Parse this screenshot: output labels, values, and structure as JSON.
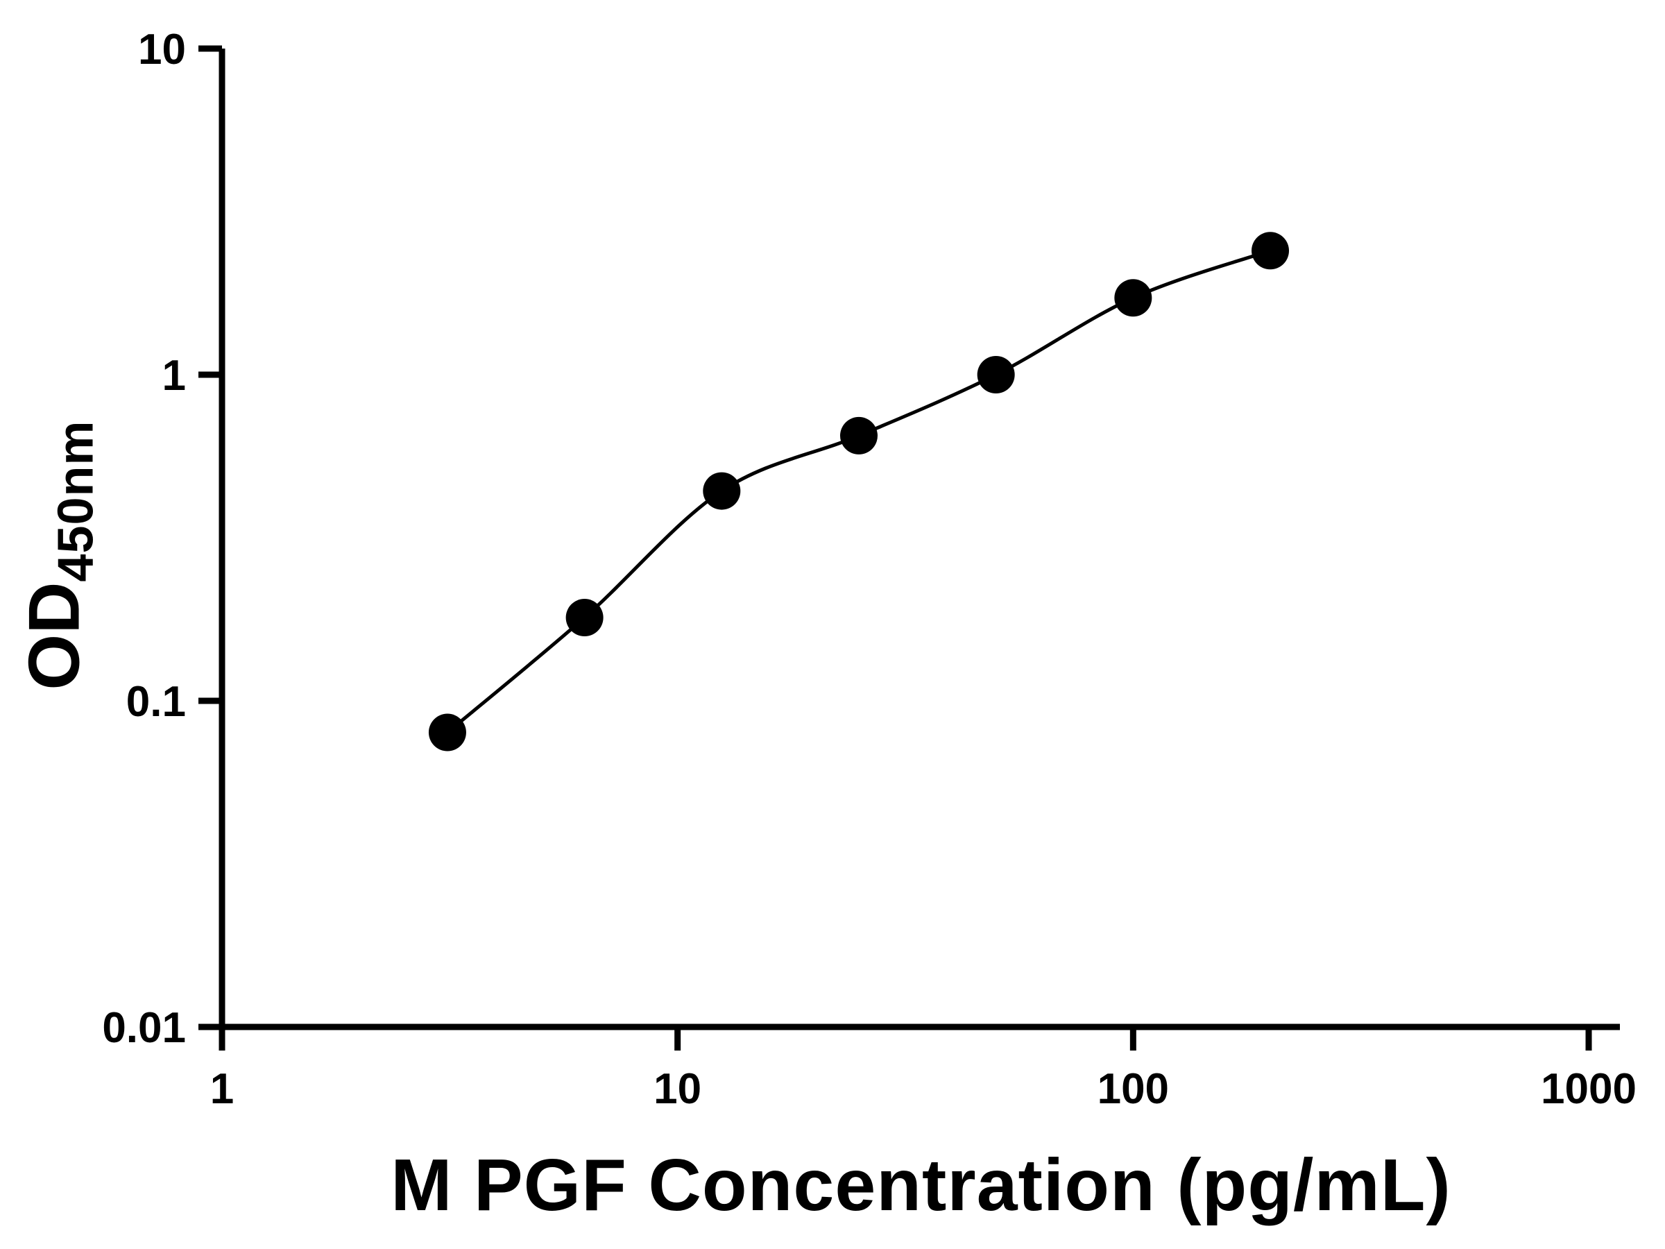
{
  "chart_data": {
    "type": "scatter",
    "title": "",
    "xlabel": "M PGF Concentration (pg/mL)",
    "ylabel_main": "OD",
    "ylabel_sub": "450nm",
    "x_scale": "log",
    "y_scale": "log",
    "xlim": [
      1,
      1000
    ],
    "ylim": [
      0.01,
      10
    ],
    "x_ticks": [
      1,
      10,
      100,
      1000
    ],
    "x_tick_labels": [
      "1",
      "10",
      "100",
      "1000"
    ],
    "y_ticks": [
      0.01,
      0.1,
      1,
      10
    ],
    "y_tick_labels": [
      "0.01",
      "0.1",
      "1",
      "10"
    ],
    "x": [
      3.125,
      6.25,
      12.5,
      25,
      50,
      100,
      200
    ],
    "y": [
      0.08,
      0.18,
      0.44,
      0.65,
      1.0,
      1.72,
      2.4
    ],
    "grid": false,
    "legend": "none",
    "fit_line": "smooth curve through points",
    "marker_color": "#000000",
    "line_color": "#000000",
    "axis_color": "#000000",
    "background": "#ffffff"
  }
}
